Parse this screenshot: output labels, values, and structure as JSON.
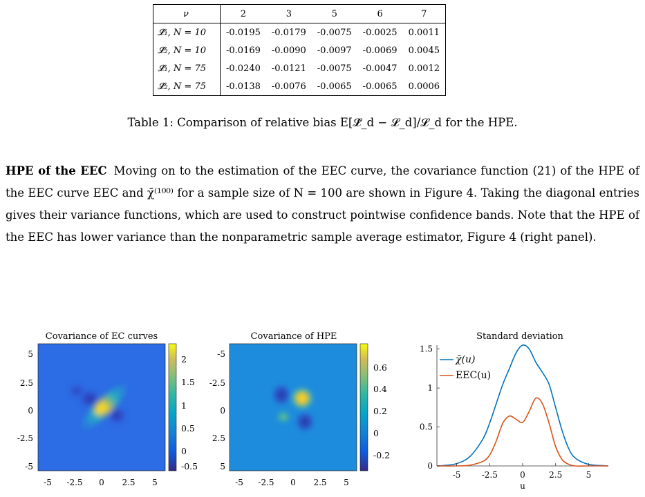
{
  "table": {
    "header": [
      "ν",
      "2",
      "3",
      "5",
      "6",
      "7"
    ],
    "rows": [
      {
        "label": "̂𝓛₁, N = 10",
        "values": [
          "-0.0195",
          "-0.0179",
          "-0.0075",
          "-0.0025",
          "0.0011"
        ]
      },
      {
        "label": "̂𝓛₂, N = 10",
        "values": [
          "-0.0169",
          "-0.0090",
          "-0.0097",
          "-0.0069",
          "0.0045"
        ]
      },
      {
        "label": "̂𝓛₁, N = 75",
        "values": [
          "-0.0240",
          "-0.0121",
          "-0.0075",
          "-0.0047",
          "0.0012"
        ]
      },
      {
        "label": "̂𝓛₂, N = 75",
        "values": [
          "-0.0138",
          "-0.0076",
          "-0.0065",
          "-0.0065",
          "0.0006"
        ]
      }
    ],
    "row_labels_display": [
      "𝓛̂₁, N = 10",
      "𝓛̂₂, N = 10",
      "𝓛̂₁, N = 75",
      "𝓛̂₂, N = 75"
    ]
  },
  "caption": "Table 1: Comparison of relative bias E[𝓛̂_d − 𝓛_d]/𝓛_d for the HPE.",
  "paragraph": {
    "heading": "HPE of the EEC",
    "text": "Moving on to the estimation of the EEC curve, the covariance function (21) of the HPE of the EEC curve EEC and χ̄⁽¹⁰⁰⁾ for a sample size of N = 100 are shown in Figure 4. Taking the diagonal entries gives their variance functions, which are used to construct pointwise confidence bands. Note that the HPE of the EEC has lower variance than the nonparametric sample average estimator, Figure 4 (right panel)."
  },
  "figures": {
    "panel1": {
      "title": "Covariance of EC curves",
      "yticks": [
        "5",
        "2.5",
        "0",
        "-2.5",
        "-5"
      ],
      "xticks": [
        "-5",
        "-2.5",
        "0",
        "2.5",
        "5"
      ],
      "cbar_ticks": [
        "2",
        "1.5",
        "1",
        "0.5",
        "0",
        "-0.5"
      ]
    },
    "panel2": {
      "title": "Covariance of HPE",
      "yticks": [
        "-5",
        "-2.5",
        "0",
        "2.5",
        "5"
      ],
      "xticks": [
        "-5",
        "-2.5",
        "0",
        "2.5",
        "5"
      ],
      "cbar_ticks": [
        "0.6",
        "0.4",
        "0.2",
        "0",
        "-0.2"
      ]
    },
    "colors": {
      "line1": "#0072BD",
      "line2": "#D95319"
    }
  },
  "chart_data": {
    "type": "line",
    "title": "Standard deviation",
    "xlabel": "u",
    "ylabel": "",
    "xlim": [
      -6.5,
      6.5
    ],
    "ylim": [
      0,
      1.55
    ],
    "xticks": [
      "-5",
      "-2.5",
      "0",
      "2.5",
      "5"
    ],
    "yticks": [
      "1.5",
      "1",
      "0.5",
      "0"
    ],
    "grid": false,
    "legend": "top-left",
    "x": [
      -6.5,
      -6,
      -5,
      -4,
      -3,
      -2.5,
      -2,
      -1.5,
      -1,
      -0.5,
      0,
      0.5,
      1,
      1.5,
      2,
      2.5,
      3,
      3.5,
      4,
      5,
      6,
      6.5
    ],
    "series": [
      {
        "name": "χ̄(u)",
        "color": "#0072BD",
        "values": [
          0.0,
          0.005,
          0.03,
          0.12,
          0.35,
          0.55,
          0.8,
          1.05,
          1.25,
          1.45,
          1.55,
          1.5,
          1.33,
          1.2,
          1.05,
          0.75,
          0.45,
          0.22,
          0.1,
          0.02,
          0.005,
          0.0
        ]
      },
      {
        "name": "EEC(u)",
        "color": "#D95319",
        "values": [
          0.0,
          0.0,
          0.0,
          0.01,
          0.06,
          0.14,
          0.32,
          0.55,
          0.64,
          0.6,
          0.56,
          0.7,
          0.87,
          0.8,
          0.55,
          0.25,
          0.08,
          0.02,
          0.0,
          0.0,
          0.0,
          0.0
        ]
      }
    ]
  }
}
